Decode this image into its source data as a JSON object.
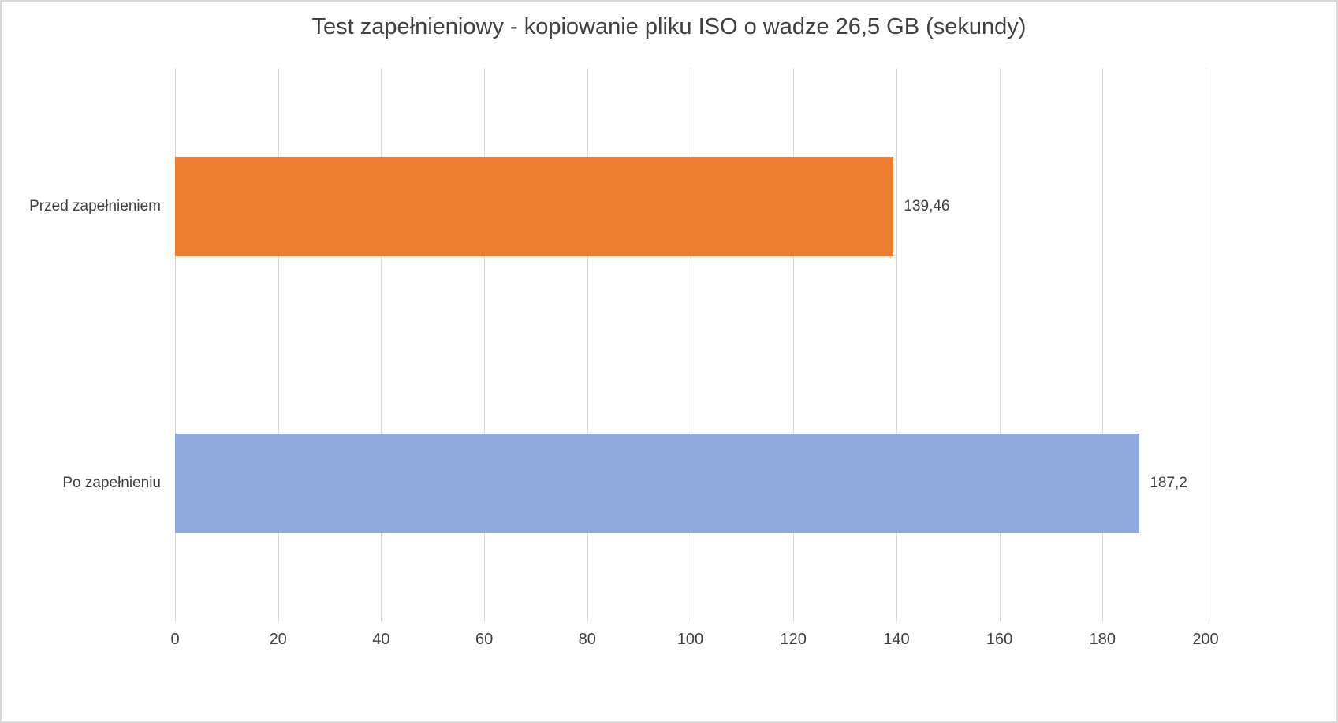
{
  "chart_data": {
    "type": "bar",
    "orientation": "horizontal",
    "title": "Test zapełnieniowy - kopiowanie pliku ISO o wadze 26,5 GB (sekundy)",
    "categories": [
      "Przed zapełnieniem",
      "Po zapełnieniu"
    ],
    "values": [
      139.46,
      187.2
    ],
    "value_labels": [
      "139,46",
      "187,2"
    ],
    "bar_colors": [
      "#ED7D31",
      "#8FAADC"
    ],
    "xlabel": "",
    "ylabel": "",
    "xlim": [
      0,
      200
    ],
    "xticks": [
      0,
      20,
      40,
      60,
      80,
      100,
      120,
      140,
      160,
      180,
      200
    ],
    "grid": "vertical",
    "legend": "none"
  },
  "colors": {
    "gridline": "#D9D9D9",
    "text": "#404040",
    "background": "#FFFFFF",
    "border": "#D9D9D9"
  }
}
